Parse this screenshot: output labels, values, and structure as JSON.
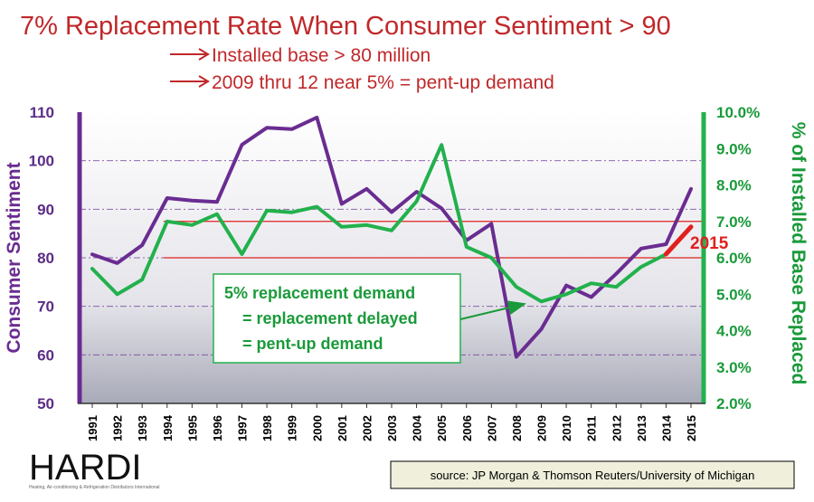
{
  "header": {
    "title": "7% Replacement Rate When Consumer Sentiment > 90",
    "bullets": [
      "Installed base > 80 million",
      "2009 thru 12 near 5% = pent-up demand"
    ]
  },
  "colors": {
    "sentiment": "#6a2c91",
    "replacement": "#22b14c",
    "reference": "#e0201f",
    "title": "#c0282a"
  },
  "chart_data": {
    "type": "line",
    "x": [
      "1991",
      "1992",
      "1993",
      "1994",
      "1995",
      "1996",
      "1997",
      "1998",
      "1999",
      "2000",
      "2001",
      "2002",
      "2003",
      "2004",
      "2005",
      "2006",
      "2007",
      "2008",
      "2009",
      "2010",
      "2011",
      "2012",
      "2013",
      "2014",
      "2015"
    ],
    "series": [
      {
        "axis": "left",
        "values": [
          80.7,
          78.9,
          82.6,
          92.3,
          91.8,
          91.5,
          103.3,
          106.8,
          106.5,
          108.9,
          91.1,
          94.2,
          89.4,
          93.6,
          90.2,
          83.6,
          87.0,
          59.6,
          65.3,
          74.3,
          71.9,
          76.7,
          81.9,
          82.8,
          94.2
        ]
      },
      {
        "axis": "right",
        "values": [
          5.7,
          5.0,
          5.4,
          7.0,
          6.9,
          7.2,
          6.1,
          7.3,
          7.25,
          7.4,
          6.85,
          6.9,
          6.75,
          7.55,
          9.1,
          6.3,
          6.0,
          5.2,
          4.8,
          5.0,
          5.3,
          5.2,
          5.75,
          6.1,
          null
        ]
      }
    ],
    "y_left": {
      "label": "Consumer Sentiment",
      "ticks": [
        "50",
        "60",
        "70",
        "80",
        "90",
        "100",
        "110"
      ],
      "range": [
        50,
        110
      ]
    },
    "y_right": {
      "label": "% of Installed Base Replaced",
      "ticks": [
        "2.0%",
        "3.0%",
        "4.0%",
        "5.0%",
        "6.0%",
        "7.0%",
        "8.0%",
        "9.0%",
        "10.0%"
      ],
      "range": [
        2.0,
        10.0
      ]
    },
    "reference_lines": [
      {
        "axis": "right",
        "value": 7.0
      },
      {
        "axis": "right",
        "value": 6.0
      }
    ],
    "projection_2015": {
      "from": 6.1,
      "to": 6.85,
      "label": "2015"
    },
    "annotation": {
      "lines": [
        "5% replacement demand",
        "= replacement delayed",
        "= pent-up demand"
      ]
    },
    "grid": true
  },
  "footer": {
    "logo": "HARDI",
    "logo_sub": "Heating, Air-conditioning & Refrigeration Distributors International",
    "source": "source:  JP Morgan & Thomson Reuters/University of Michigan"
  }
}
